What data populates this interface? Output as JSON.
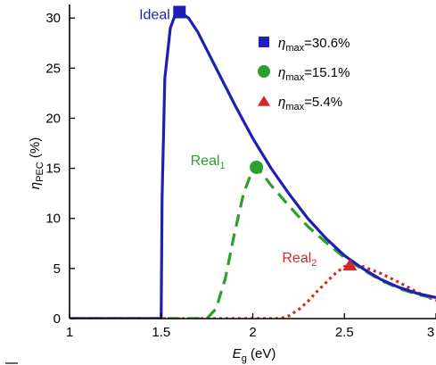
{
  "chart_data": {
    "type": "line",
    "xlabel": "E",
    "xlabel_sub": "g",
    "xlabel_unit": " (eV)",
    "ylabel": "η",
    "ylabel_sub": "PEC",
    "ylabel_unit": " (%)",
    "xlim": [
      1,
      3
    ],
    "ylim": [
      0,
      31
    ],
    "xticks": [
      1,
      1.5,
      2,
      2.5,
      3
    ],
    "xtick_labels": [
      "1",
      "1.5",
      "2",
      "2.5",
      "3"
    ],
    "yticks": [
      0,
      5,
      10,
      15,
      20,
      25,
      30
    ],
    "ytick_labels": [
      "0",
      "5",
      "10",
      "15",
      "20",
      "25",
      "30"
    ],
    "grid": false,
    "legend_position": "top-right",
    "series": [
      {
        "name": "Ideal",
        "color": "#1f1fb4",
        "dash": "solid",
        "x": [
          1.0,
          1.49,
          1.5,
          1.505,
          1.52,
          1.55,
          1.58,
          1.6,
          1.65,
          1.7,
          1.8,
          1.9,
          2.0,
          2.1,
          2.2,
          2.3,
          2.4,
          2.5,
          2.6,
          2.7,
          2.8,
          2.9,
          3.0
        ],
        "y": [
          0,
          0,
          0,
          12.0,
          24.0,
          29.0,
          30.5,
          30.6,
          30.0,
          28.6,
          25.0,
          21.4,
          18.0,
          15.0,
          12.4,
          10.0,
          8.0,
          6.3,
          5.0,
          3.9,
          3.1,
          2.5,
          2.1
        ]
      },
      {
        "name": "Real",
        "name_sub": "1",
        "color": "#2ca02c",
        "dash": "dashed",
        "x": [
          1.0,
          1.75,
          1.8,
          1.85,
          1.9,
          1.95,
          2.0,
          2.02,
          2.05,
          2.1,
          2.2,
          2.3,
          2.4,
          2.5,
          2.6,
          2.7,
          2.8,
          2.9,
          3.0
        ],
        "y": [
          0,
          0,
          1.0,
          4.0,
          8.5,
          12.5,
          14.9,
          15.1,
          14.5,
          13.3,
          11.2,
          9.2,
          7.6,
          6.1,
          4.9,
          3.8,
          3.0,
          2.4,
          2.0
        ]
      },
      {
        "name": "Real",
        "name_sub": "2",
        "color": "#d62728",
        "dash": "dotted",
        "x": [
          1.0,
          2.15,
          2.2,
          2.25,
          2.3,
          2.35,
          2.4,
          2.45,
          2.5,
          2.53,
          2.6,
          2.7,
          2.8,
          2.9,
          3.0
        ],
        "y": [
          0,
          0,
          0.3,
          0.9,
          1.7,
          2.7,
          3.6,
          4.5,
          5.2,
          5.4,
          5.2,
          4.5,
          3.6,
          2.6,
          1.8
        ]
      }
    ],
    "maxima": [
      {
        "series": 0,
        "x": 1.6,
        "y": 30.6,
        "marker": "square"
      },
      {
        "series": 1,
        "x": 2.02,
        "y": 15.1,
        "marker": "circle"
      },
      {
        "series": 2,
        "x": 2.53,
        "y": 5.4,
        "marker": "triangle"
      }
    ],
    "annotations": [
      {
        "series": 0,
        "text": "Ideal",
        "sub": "",
        "x": 1.38,
        "y": 29.9
      },
      {
        "series": 1,
        "text": "Real",
        "sub": "1",
        "x": 1.66,
        "y": 15.3
      },
      {
        "series": 2,
        "text": "Real",
        "sub": "2",
        "x": 2.16,
        "y": 5.6
      }
    ],
    "legend": [
      {
        "series": 0,
        "marker": "square",
        "symbol": "η",
        "sub": "max",
        "value": "=30.6%"
      },
      {
        "series": 1,
        "marker": "circle",
        "symbol": "η",
        "sub": "max",
        "value": "=15.1%"
      },
      {
        "series": 2,
        "marker": "triangle",
        "symbol": "η",
        "sub": "max",
        "value": "=5.4%"
      }
    ]
  }
}
